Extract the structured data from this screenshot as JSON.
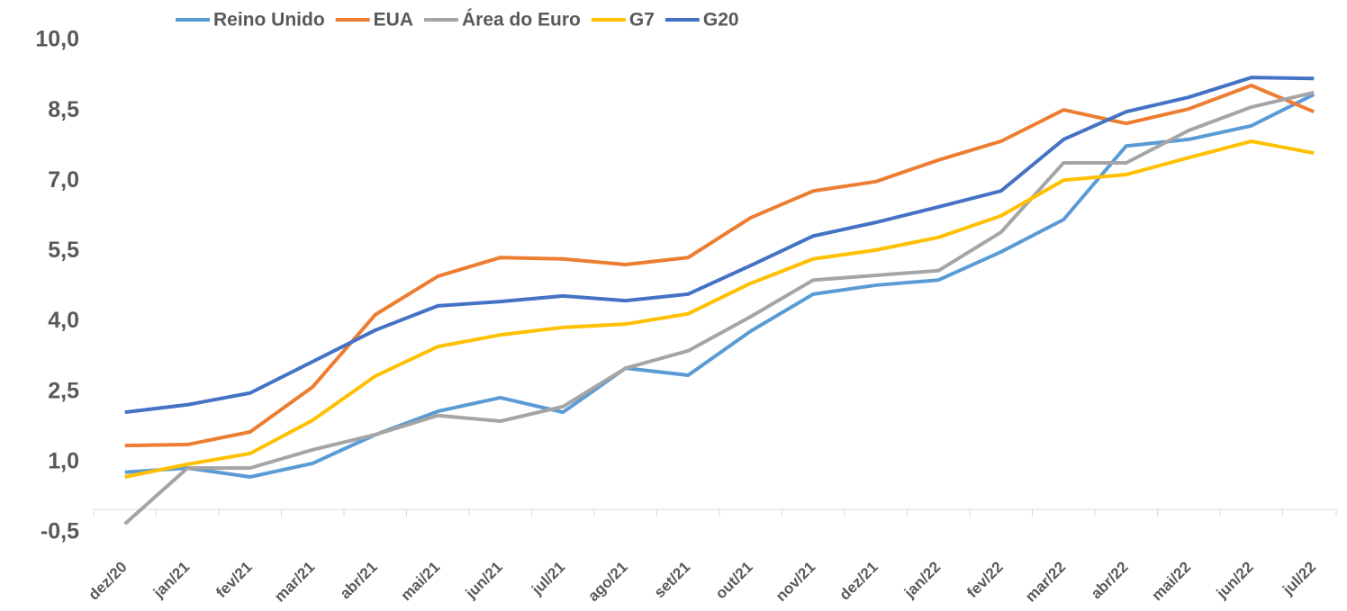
{
  "chart_data": {
    "type": "line",
    "categories": [
      "dez/20",
      "jan/21",
      "fev/21",
      "mar/21",
      "abr/21",
      "mai/21",
      "jun/21",
      "jul/21",
      "ago/21",
      "set/21",
      "out/21",
      "nov/21",
      "dez/21",
      "jan/22",
      "fev/22",
      "mar/22",
      "abr/22",
      "mai/22",
      "jun/22",
      "jul/22"
    ],
    "series": [
      {
        "name": "Reino Unido",
        "color": "#5b9bd5",
        "values": [
          0.79,
          0.88,
          0.69,
          0.98,
          1.59,
          2.09,
          2.38,
          2.07,
          3.01,
          2.86,
          3.8,
          4.59,
          4.78,
          4.89,
          5.49,
          6.18,
          7.75,
          7.89,
          8.18,
          8.85
        ]
      },
      {
        "name": "EUA",
        "color": "#ed7d31",
        "values": [
          1.36,
          1.38,
          1.65,
          2.61,
          4.15,
          4.97,
          5.37,
          5.34,
          5.22,
          5.37,
          6.22,
          6.79,
          6.99,
          7.45,
          7.85,
          8.52,
          8.23,
          8.54,
          9.04,
          8.48
        ]
      },
      {
        "name": "Área do Euro",
        "color": "#a5a5a5",
        "values": [
          -0.31,
          0.88,
          0.88,
          1.27,
          1.59,
          2.0,
          1.88,
          2.19,
          3.01,
          3.38,
          4.11,
          4.89,
          4.99,
          5.09,
          5.91,
          7.39,
          7.39,
          8.08,
          8.58,
          8.89
        ]
      },
      {
        "name": "G7",
        "color": "#ffc000",
        "values": [
          0.69,
          0.96,
          1.19,
          1.9,
          2.84,
          3.47,
          3.72,
          3.88,
          3.95,
          4.17,
          4.82,
          5.34,
          5.53,
          5.8,
          6.26,
          7.02,
          7.14,
          7.5,
          7.85,
          7.6
        ]
      },
      {
        "name": "G20",
        "color": "#4472c4",
        "values": [
          2.07,
          2.23,
          2.48,
          3.15,
          3.82,
          4.34,
          4.43,
          4.55,
          4.45,
          4.59,
          5.2,
          5.83,
          6.12,
          6.45,
          6.79,
          7.89,
          8.48,
          8.79,
          9.21,
          9.19
        ]
      }
    ],
    "ylim": [
      -0.5,
      10
    ],
    "yticks": [
      {
        "value": -0.5,
        "label": "-0,5"
      },
      {
        "value": 1,
        "label": "1,0"
      },
      {
        "value": 2.5,
        "label": "2,5"
      },
      {
        "value": 4,
        "label": "4,0"
      },
      {
        "value": 5.5,
        "label": "5,5"
      },
      {
        "value": 7,
        "label": "7,0"
      },
      {
        "value": 8.5,
        "label": "8,5"
      },
      {
        "value": 10,
        "label": "10,0"
      }
    ],
    "grid": false,
    "legend": "top"
  }
}
